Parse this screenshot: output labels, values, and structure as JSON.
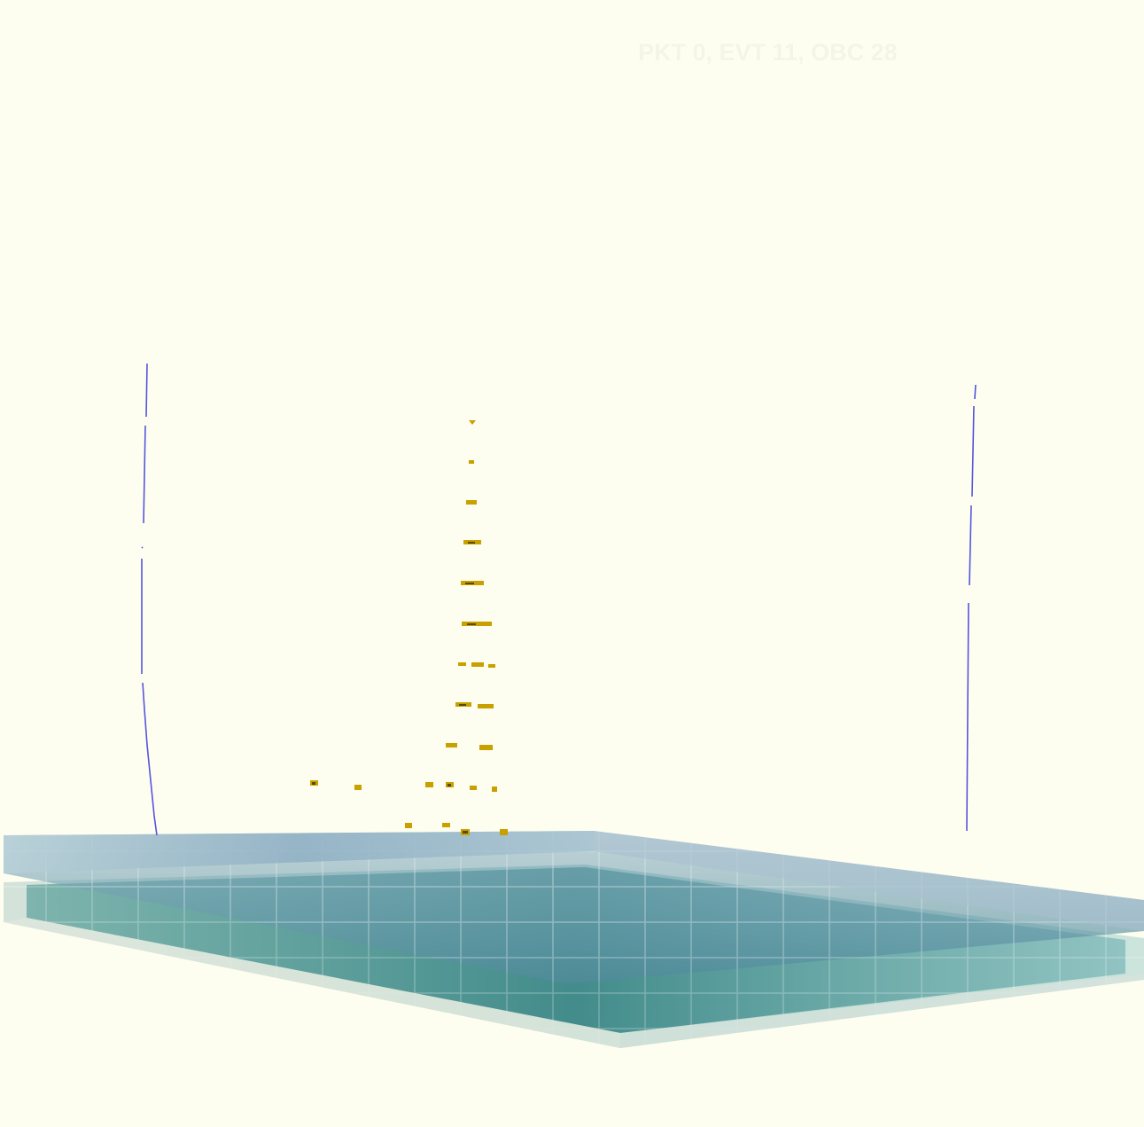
{
  "overlay": {
    "event_label": "PKT 0, EVT 11, OBC 28"
  },
  "colors": {
    "background": "#fefef0",
    "overlay_text": "#f4f4e8",
    "track": "#5555dd",
    "hit": "#c8a000",
    "hit_core": "#5a4a00",
    "plate_top": "#7fa6bc",
    "plate_bottom": "#6fb8a8"
  }
}
